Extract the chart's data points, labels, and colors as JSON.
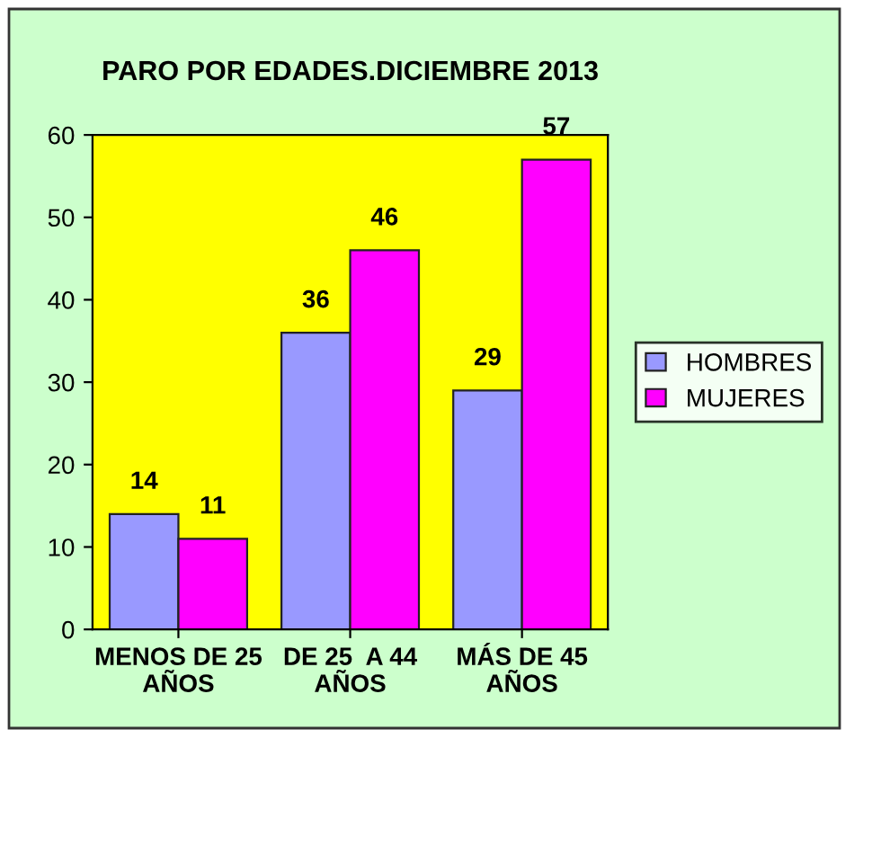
{
  "chart_data": {
    "type": "bar",
    "title": "PARO POR EDADES.DICIEMBRE 2013",
    "categories": [
      "MENOS DE 25\nAÑOS",
      "DE 25  A 44\nAÑOS",
      "MÁS DE 45\nAÑOS"
    ],
    "series": [
      {
        "name": "HOMBRES",
        "color": "#9999ff",
        "values": [
          14,
          36,
          29
        ]
      },
      {
        "name": "MUJERES",
        "color": "#ff00ff",
        "values": [
          11,
          46,
          57
        ]
      }
    ],
    "ylim": [
      0,
      60
    ],
    "yticks": [
      0,
      10,
      20,
      30,
      40,
      50,
      60
    ],
    "grid": false,
    "legend": "right",
    "data_labels": true
  }
}
